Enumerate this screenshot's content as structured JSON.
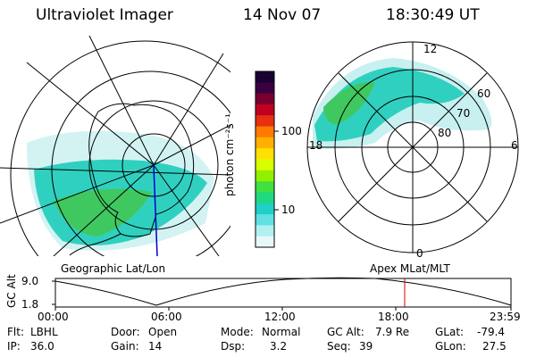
{
  "header": {
    "instrument": "Ultraviolet Imager",
    "date": "14 Nov 07",
    "time": "18:30:49 UT"
  },
  "geo_panel": {
    "label": "Geographic Lat/Lon"
  },
  "apex_panel": {
    "label": "Apex MLat/MLT",
    "lat_labels": [
      "60",
      "70",
      "80"
    ],
    "mlt_labels": [
      "12",
      "18",
      "6",
      "0"
    ]
  },
  "colorbar": {
    "unit_label": "photon cm⁻²s⁻¹",
    "ticks": [
      "100",
      "10"
    ],
    "colors": [
      "#1a0033",
      "#3a0040",
      "#7a0030",
      "#c00020",
      "#e83010",
      "#ff7a00",
      "#ffb000",
      "#ffe000",
      "#d8ff00",
      "#90f000",
      "#40e040",
      "#20d880",
      "#20d0c8",
      "#60e0e0",
      "#b0f0f0",
      "#e8f8f8"
    ]
  },
  "altitude_strip": {
    "axis_label": "GC Alt",
    "y_ticks": [
      "9.0",
      "1.8"
    ],
    "x_ticks": [
      "00:00",
      "06:00",
      "12:00",
      "18:00",
      "23:59"
    ],
    "marker_color": "#cc0000"
  },
  "status": {
    "row1": [
      {
        "label": "Flt:",
        "value": "LBHL"
      },
      {
        "label": "Door:",
        "value": "Open"
      },
      {
        "label": "Mode:",
        "value": "Normal"
      },
      {
        "label": "GC Alt:",
        "value": "7.9 Re"
      },
      {
        "label": "GLat:",
        "value": "-79.4"
      }
    ],
    "row2": [
      {
        "label": "IP:",
        "value": "36.0"
      },
      {
        "label": "Gain:",
        "value": "14"
      },
      {
        "label": "Dsp:",
        "value": "3.2"
      },
      {
        "label": "Seq:",
        "value": "39"
      },
      {
        "label": "GLon:",
        "value": "27.5"
      }
    ]
  },
  "colors": {
    "aurora_low": "#30d0c0",
    "aurora_mid": "#40c860",
    "aurora_faint": "#c8f0f0",
    "grid": "#000000",
    "coast": "#000000",
    "meridian": "#0000cc"
  }
}
